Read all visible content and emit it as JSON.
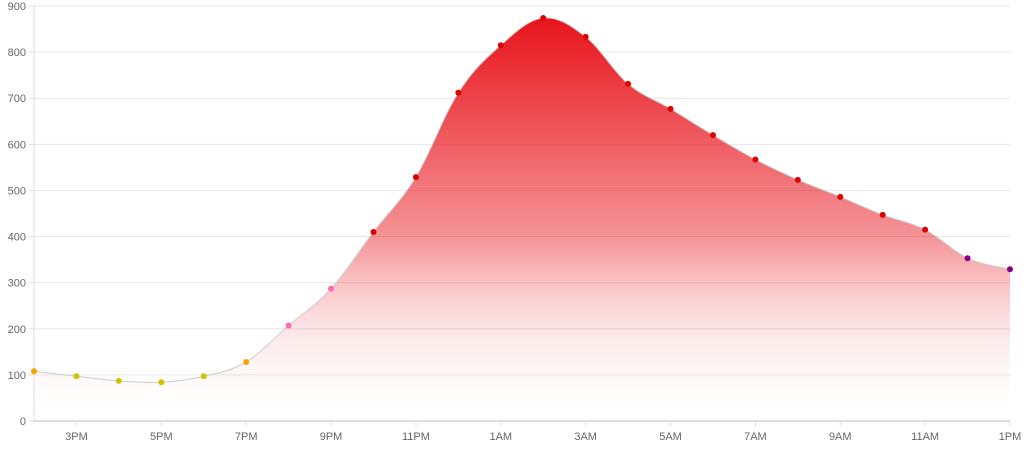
{
  "chart_data": {
    "type": "area",
    "title": "",
    "xlabel": "",
    "ylabel": "",
    "ylim": [
      0,
      900
    ],
    "y_ticks": [
      0,
      100,
      200,
      300,
      400,
      500,
      600,
      700,
      800,
      900
    ],
    "x_tick_labels": [
      "3PM",
      "5PM",
      "7PM",
      "9PM",
      "11PM",
      "1AM",
      "3AM",
      "5AM",
      "7AM",
      "9AM",
      "11AM",
      "1PM"
    ],
    "grid": true,
    "legend": "none",
    "area_gradient": {
      "top": "#e8141b",
      "bottom": "#ffffff"
    },
    "line_color": "#cccccc",
    "x": [
      "2PM",
      "3PM",
      "4PM",
      "5PM",
      "6PM",
      "7PM",
      "8PM",
      "9PM",
      "10PM",
      "11PM",
      "12AM",
      "1AM",
      "2AM",
      "3AM",
      "4AM",
      "5AM",
      "6AM",
      "7AM",
      "8AM",
      "9AM",
      "10AM",
      "11AM",
      "12PM",
      "1PM"
    ],
    "values": [
      108,
      97,
      87,
      84,
      97,
      128,
      207,
      287,
      410,
      529,
      712,
      815,
      874,
      833,
      731,
      677,
      620,
      567,
      523,
      486,
      447,
      415,
      353,
      329
    ],
    "point_colors": [
      "#f4a300",
      "#d6c100",
      "#d6c100",
      "#d6c100",
      "#d6c100",
      "#f4a300",
      "#ff69b4",
      "#ff69b4",
      "#dd0000",
      "#dd0000",
      "#dd0000",
      "#dd0000",
      "#dd0000",
      "#dd0000",
      "#dd0000",
      "#dd0000",
      "#dd0000",
      "#dd0000",
      "#dd0000",
      "#dd0000",
      "#dd0000",
      "#dd0000",
      "#8b008b",
      "#8b008b"
    ]
  }
}
